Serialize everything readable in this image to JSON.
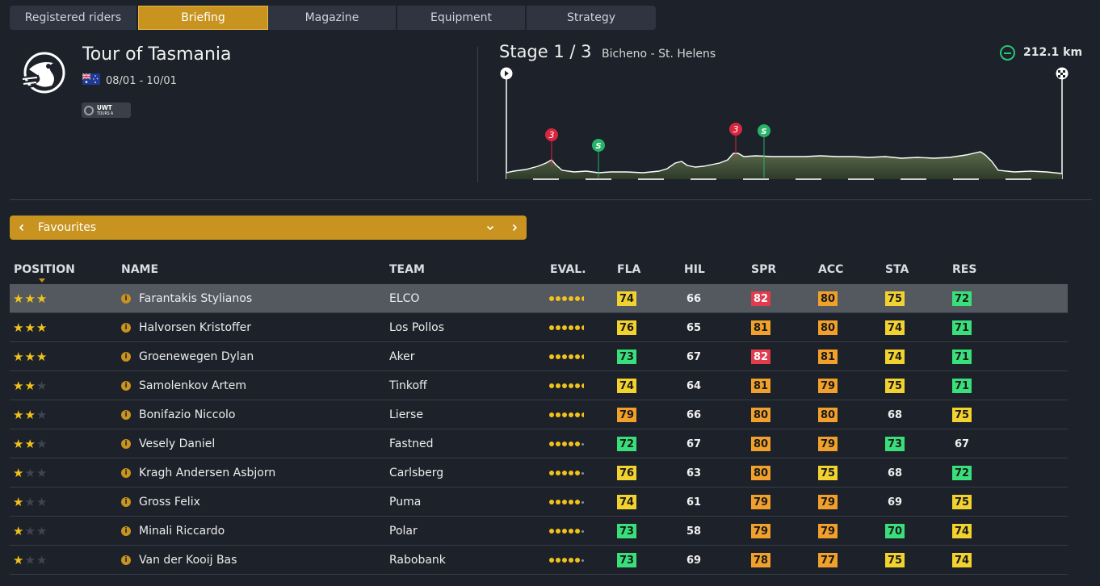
{
  "tabs": [
    {
      "label": "Registered riders",
      "active": false
    },
    {
      "label": "Briefing",
      "active": true
    },
    {
      "label": "Magazine",
      "active": false
    },
    {
      "label": "Equipment",
      "active": false
    },
    {
      "label": "Strategy",
      "active": false
    }
  ],
  "race": {
    "title": "Tour of Tasmania",
    "dates": "08/01 - 10/01",
    "country_flag": "australia-flag-icon",
    "category_badge": {
      "line1": "UWT",
      "line2": "TOURS A"
    }
  },
  "stage": {
    "label": "Stage 1 / 3",
    "route": "Bicheno - St. Helens",
    "distance": "212.1 km",
    "markers": [
      {
        "type": "climb",
        "label": "3",
        "color": "#d9263f"
      },
      {
        "type": "sprint",
        "label": "S",
        "color": "#27b46a"
      },
      {
        "type": "climb",
        "label": "3",
        "color": "#d9263f"
      },
      {
        "type": "sprint",
        "label": "S",
        "color": "#27b46a"
      }
    ]
  },
  "selector": {
    "label": "Favourites"
  },
  "table": {
    "headers": {
      "position": "POSITION",
      "name": "NAME",
      "team": "TEAM",
      "eval": "EVAL.",
      "fla": "FLA",
      "hil": "HIL",
      "spr": "SPR",
      "acc": "ACC",
      "sta": "STA",
      "res": "RES"
    },
    "sorted_by": "position",
    "rows": [
      {
        "stars": 3,
        "name": "Farantakis Stylianos",
        "team": "ELCO",
        "eval": 5.5,
        "fla": "74",
        "fla_c": "yellow",
        "hil": "66",
        "hil_c": "plain",
        "spr": "82",
        "spr_c": "red",
        "acc": "80",
        "acc_c": "orange",
        "sta": "75",
        "sta_c": "yellow",
        "res": "72",
        "res_c": "green",
        "selected": true
      },
      {
        "stars": 3,
        "name": "Halvorsen Kristoffer",
        "team": "Los Pollos",
        "eval": 5.5,
        "fla": "76",
        "fla_c": "yellow",
        "hil": "65",
        "hil_c": "plain",
        "spr": "81",
        "spr_c": "orange",
        "acc": "80",
        "acc_c": "orange",
        "sta": "74",
        "sta_c": "yellow",
        "res": "71",
        "res_c": "green"
      },
      {
        "stars": 3,
        "name": "Groenewegen Dylan",
        "team": "Aker",
        "eval": 5.5,
        "fla": "73",
        "fla_c": "green",
        "hil": "67",
        "hil_c": "plain",
        "spr": "82",
        "spr_c": "red",
        "acc": "81",
        "acc_c": "orange",
        "sta": "74",
        "sta_c": "yellow",
        "res": "71",
        "res_c": "green"
      },
      {
        "stars": 2,
        "name": "Samolenkov Artem",
        "team": "Tinkoff",
        "eval": 5.5,
        "fla": "74",
        "fla_c": "yellow",
        "hil": "64",
        "hil_c": "plain",
        "spr": "81",
        "spr_c": "orange",
        "acc": "79",
        "acc_c": "orange",
        "sta": "75",
        "sta_c": "yellow",
        "res": "71",
        "res_c": "green"
      },
      {
        "stars": 2,
        "name": "Bonifazio Niccolo",
        "team": "Lierse",
        "eval": 5.5,
        "fla": "79",
        "fla_c": "orange",
        "hil": "66",
        "hil_c": "plain",
        "spr": "80",
        "spr_c": "orange",
        "acc": "80",
        "acc_c": "orange",
        "sta": "68",
        "sta_c": "plain",
        "res": "75",
        "res_c": "yellow"
      },
      {
        "stars": 2,
        "name": "Vesely Daniel",
        "team": "Fastned",
        "eval": 5,
        "fla": "72",
        "fla_c": "green",
        "hil": "67",
        "hil_c": "plain",
        "spr": "80",
        "spr_c": "orange",
        "acc": "79",
        "acc_c": "orange",
        "sta": "73",
        "sta_c": "green",
        "res": "67",
        "res_c": "plain"
      },
      {
        "stars": 1,
        "name": "Kragh Andersen Asbjorn",
        "team": "Carlsberg",
        "eval": 5,
        "fla": "76",
        "fla_c": "yellow",
        "hil": "63",
        "hil_c": "plain",
        "spr": "80",
        "spr_c": "orange",
        "acc": "75",
        "acc_c": "yellow",
        "sta": "68",
        "sta_c": "plain",
        "res": "72",
        "res_c": "green"
      },
      {
        "stars": 1,
        "name": "Gross Felix",
        "team": "Puma",
        "eval": 5,
        "fla": "74",
        "fla_c": "yellow",
        "hil": "61",
        "hil_c": "plain",
        "spr": "79",
        "spr_c": "orange",
        "acc": "79",
        "acc_c": "orange",
        "sta": "69",
        "sta_c": "plain",
        "res": "75",
        "res_c": "yellow"
      },
      {
        "stars": 1,
        "name": "Minali Riccardo",
        "team": "Polar",
        "eval": 5,
        "fla": "73",
        "fla_c": "green",
        "hil": "58",
        "hil_c": "plain",
        "spr": "79",
        "spr_c": "orange",
        "acc": "79",
        "acc_c": "orange",
        "sta": "70",
        "sta_c": "green",
        "res": "74",
        "res_c": "yellow"
      },
      {
        "stars": 1,
        "name": "Van der Kooij Bas",
        "team": "Rabobank",
        "eval": 5,
        "fla": "73",
        "fla_c": "green",
        "hil": "69",
        "hil_c": "plain",
        "spr": "78",
        "spr_c": "orange",
        "acc": "77",
        "acc_c": "orange",
        "sta": "75",
        "sta_c": "yellow",
        "res": "74",
        "res_c": "yellow"
      }
    ]
  },
  "colors": {
    "accent": "#c8941f",
    "background": "#1d2129",
    "stat_red": "#e23b4e",
    "stat_orange": "#f1a02b",
    "stat_yellow": "#f2d22e",
    "stat_green": "#39df7b"
  }
}
